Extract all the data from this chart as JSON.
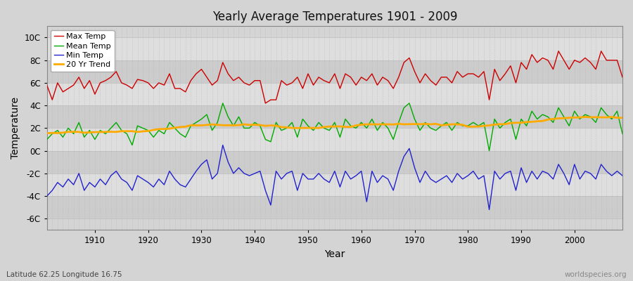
{
  "title": "Yearly Average Temperatures 1901 - 2009",
  "xlabel": "Year",
  "ylabel": "Temperature",
  "subtitle_left": "Latitude 62.25 Longitude 16.75",
  "subtitle_right": "worldspecies.org",
  "bg_color": "#d8d8d8",
  "plot_bg_color": "#d0d0d0",
  "band_colors": [
    "#cccccc",
    "#e0e0e0"
  ],
  "grid_color_major": "#bbbbbb",
  "grid_color_minor": "#c8c8c8",
  "legend_labels": [
    "Max Temp",
    "Mean Temp",
    "Min Temp",
    "20 Yr Trend"
  ],
  "legend_colors": [
    "#cc0000",
    "#00aa00",
    "#2222cc",
    "#ffaa00"
  ],
  "ylim": [
    -7,
    11
  ],
  "yticks": [
    -6,
    -4,
    -2,
    0,
    2,
    4,
    6,
    8,
    10
  ],
  "ytick_labels": [
    "-6C",
    "-4C",
    "-2C",
    "0C",
    "2C",
    "4C",
    "6C",
    "8C",
    "10C"
  ],
  "xlim": [
    1901,
    2009
  ],
  "years_start": 1901,
  "years_end": 2009,
  "max_temp": [
    5.8,
    4.5,
    6.0,
    5.2,
    5.5,
    5.8,
    6.5,
    5.5,
    6.2,
    5.0,
    6.0,
    6.2,
    6.5,
    7.0,
    6.0,
    5.8,
    5.5,
    6.3,
    6.2,
    6.0,
    5.5,
    6.0,
    5.8,
    6.8,
    5.5,
    5.5,
    5.2,
    6.2,
    6.8,
    7.2,
    6.5,
    5.8,
    6.2,
    7.8,
    6.8,
    6.2,
    6.5,
    6.0,
    5.8,
    6.2,
    6.2,
    4.2,
    4.5,
    4.5,
    6.2,
    5.8,
    6.0,
    6.5,
    5.5,
    6.8,
    5.8,
    6.5,
    6.2,
    6.0,
    6.8,
    5.5,
    6.8,
    6.5,
    5.8,
    6.5,
    6.2,
    6.8,
    5.8,
    6.5,
    6.2,
    5.5,
    6.5,
    7.8,
    8.2,
    7.0,
    6.0,
    6.8,
    6.2,
    5.8,
    6.5,
    6.5,
    6.0,
    7.0,
    6.5,
    6.8,
    6.8,
    6.5,
    7.0,
    4.5,
    7.2,
    6.2,
    6.8,
    7.5,
    6.0,
    7.8,
    7.2,
    8.5,
    7.8,
    8.2,
    8.0,
    7.2,
    8.8,
    8.0,
    7.2,
    8.0,
    7.8,
    8.2,
    7.8,
    7.2,
    8.8,
    8.0,
    8.0,
    8.0,
    6.5
  ],
  "mean_temp": [
    1.0,
    1.5,
    1.8,
    1.2,
    2.0,
    1.5,
    2.5,
    1.2,
    1.8,
    1.0,
    1.8,
    1.5,
    2.0,
    2.5,
    1.8,
    1.5,
    0.5,
    2.2,
    2.0,
    1.8,
    1.2,
    1.8,
    1.5,
    2.5,
    2.0,
    1.5,
    1.2,
    2.2,
    2.5,
    2.8,
    3.2,
    1.8,
    2.5,
    4.2,
    3.0,
    2.2,
    3.0,
    2.0,
    2.0,
    2.5,
    2.2,
    1.0,
    0.8,
    2.5,
    1.8,
    2.0,
    2.5,
    1.2,
    2.8,
    2.2,
    1.8,
    2.5,
    2.0,
    1.8,
    2.5,
    1.2,
    2.8,
    2.2,
    2.0,
    2.5,
    2.0,
    2.8,
    1.8,
    2.5,
    2.0,
    1.0,
    2.5,
    3.8,
    4.2,
    2.8,
    1.8,
    2.5,
    2.0,
    1.8,
    2.2,
    2.5,
    1.8,
    2.5,
    2.2,
    2.2,
    2.5,
    2.2,
    2.5,
    0.0,
    2.8,
    2.0,
    2.5,
    2.8,
    1.0,
    2.8,
    2.2,
    3.5,
    2.8,
    3.2,
    3.0,
    2.5,
    3.8,
    3.0,
    2.2,
    3.5,
    2.8,
    3.2,
    3.0,
    2.5,
    3.8,
    3.2,
    2.8,
    3.5,
    1.5
  ],
  "min_temp": [
    -4.0,
    -3.5,
    -2.8,
    -3.2,
    -2.5,
    -3.0,
    -2.0,
    -3.5,
    -2.8,
    -3.2,
    -2.5,
    -3.0,
    -2.2,
    -1.8,
    -2.5,
    -2.8,
    -3.5,
    -2.2,
    -2.5,
    -2.8,
    -3.2,
    -2.5,
    -3.0,
    -1.8,
    -2.5,
    -3.0,
    -3.2,
    -2.5,
    -1.8,
    -1.2,
    -0.8,
    -2.5,
    -2.0,
    0.5,
    -1.0,
    -2.0,
    -1.5,
    -2.0,
    -2.2,
    -2.0,
    -1.8,
    -3.5,
    -4.8,
    -1.8,
    -2.5,
    -2.0,
    -1.8,
    -3.5,
    -2.0,
    -2.5,
    -2.5,
    -2.0,
    -2.5,
    -2.8,
    -1.8,
    -3.2,
    -1.8,
    -2.5,
    -2.2,
    -1.8,
    -4.5,
    -1.8,
    -2.8,
    -2.2,
    -2.5,
    -3.5,
    -1.8,
    -0.5,
    0.2,
    -1.5,
    -2.8,
    -1.8,
    -2.5,
    -2.8,
    -2.5,
    -2.2,
    -2.8,
    -2.0,
    -2.5,
    -2.2,
    -1.8,
    -2.5,
    -2.2,
    -5.2,
    -1.8,
    -2.5,
    -2.0,
    -1.8,
    -3.5,
    -1.5,
    -2.8,
    -1.8,
    -2.5,
    -1.8,
    -2.0,
    -2.5,
    -1.2,
    -2.0,
    -3.0,
    -1.2,
    -2.5,
    -1.8,
    -2.0,
    -2.5,
    -1.2,
    -1.8,
    -2.2,
    -1.8,
    -2.2
  ]
}
